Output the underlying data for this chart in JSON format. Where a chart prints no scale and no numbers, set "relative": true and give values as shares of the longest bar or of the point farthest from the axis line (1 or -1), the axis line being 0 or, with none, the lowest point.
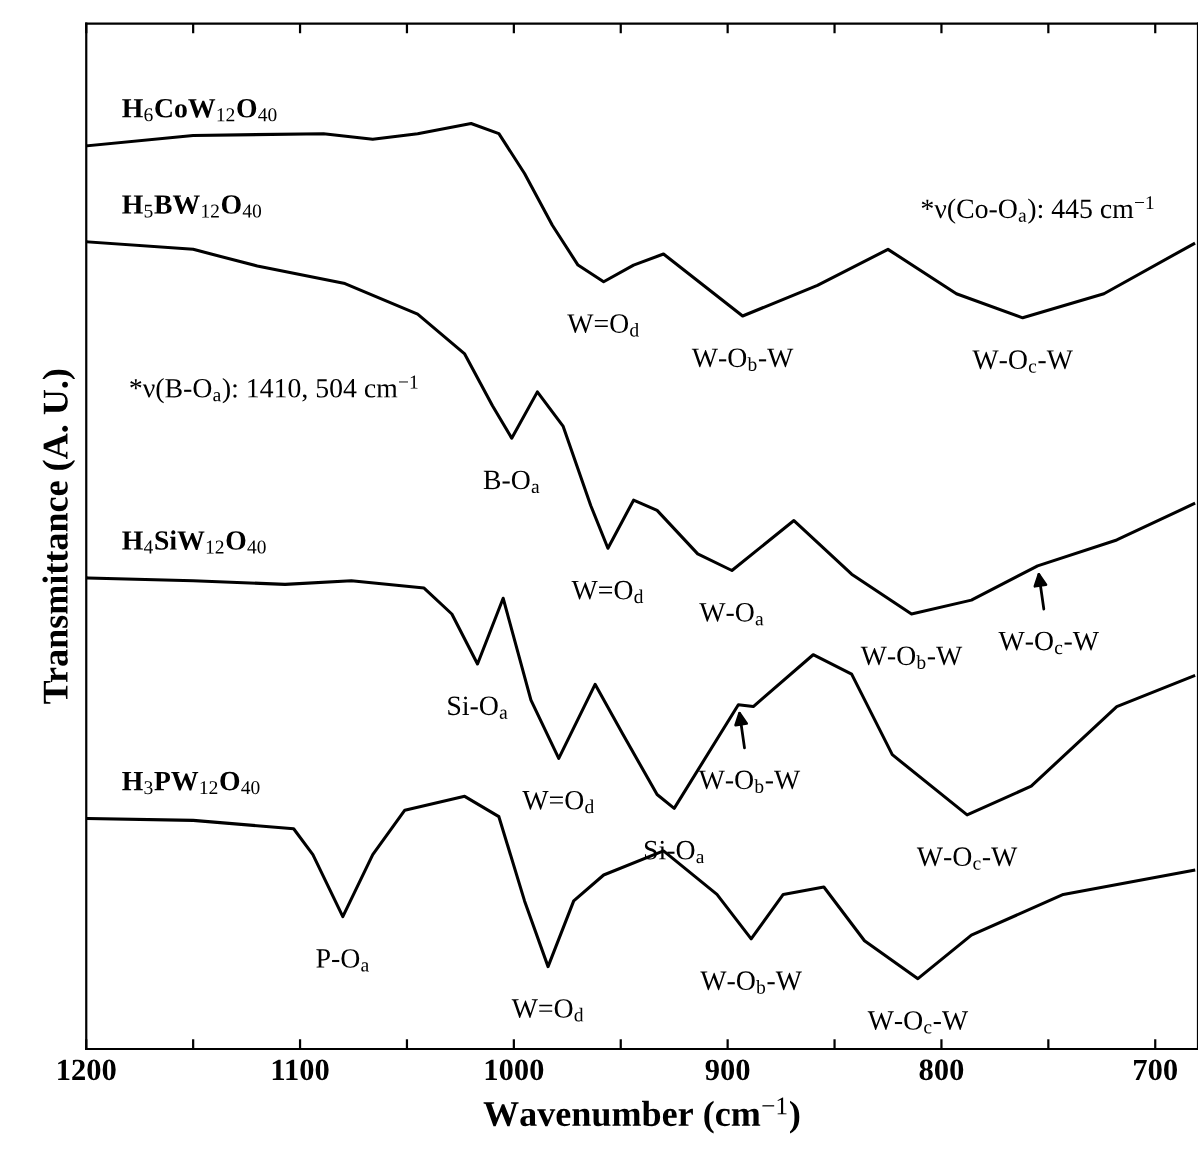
{
  "chart_data": {
    "type": "line",
    "relative": true,
    "xlabel": "Wavenumber (cm$^{−1}$)",
    "ylabel": "Transmittance (A. U.)",
    "xlim": [
      1200,
      680
    ],
    "xticks": [
      1200,
      {
        "value": 1150,
        "label": null
      },
      1100,
      {
        "value": 1050,
        "label": null
      },
      1000,
      {
        "value": 950,
        "label": null
      },
      900,
      {
        "value": 850,
        "label": null
      },
      800,
      {
        "value": 750,
        "label": null
      },
      700
    ],
    "tick_labels": "x",
    "grid": false,
    "legend": false,
    "marker": "none",
    "line_style": "solid",
    "series": [
      {
        "name": "H$_{6}$CoW$_{12}$O$_{40}$",
        "color": "#000000",
        "x": [
          1199,
          1150,
          1089,
          1066,
          1045,
          1020,
          1007,
          995,
          982,
          970,
          958,
          944,
          930,
          893,
          858,
          825,
          793,
          762,
          724,
          682
        ],
        "values": [
          0.976,
          0.987,
          0.989,
          0.983,
          0.989,
          1,
          0.989,
          0.946,
          0.89,
          0.847,
          0.829,
          0.847,
          0.859,
          0.792,
          0.825,
          0.864,
          0.816,
          0.79,
          0.816,
          0.87
        ]
      },
      {
        "name": "H$_{5}$BW$_{12}$O$_{40}$",
        "color": "#000000",
        "x": [
          1199,
          1150,
          1120,
          1079,
          1045,
          1023,
          1010,
          1001,
          989,
          977,
          964,
          956,
          944,
          933,
          914,
          898,
          869,
          842,
          814,
          786,
          755,
          718,
          682
        ],
        "values": [
          0.872,
          0.864,
          0.846,
          0.827,
          0.794,
          0.751,
          0.695,
          0.66,
          0.71,
          0.673,
          0.587,
          0.541,
          0.593,
          0.582,
          0.535,
          0.517,
          0.571,
          0.513,
          0.47,
          0.485,
          0.522,
          0.55,
          0.589
        ]
      },
      {
        "name": "H$_{4}$SiW$_{12}$O$_{40}$",
        "color": "#000000",
        "x": [
          1199,
          1150,
          1107,
          1076,
          1042,
          1029,
          1017,
          1005,
          992,
          979,
          962,
          949,
          933,
          925,
          895,
          888,
          860,
          842,
          823,
          788,
          758,
          718,
          682
        ],
        "values": [
          0.509,
          0.506,
          0.502,
          0.506,
          0.498,
          0.47,
          0.416,
          0.487,
          0.377,
          0.314,
          0.394,
          0.34,
          0.275,
          0.26,
          0.372,
          0.37,
          0.426,
          0.405,
          0.318,
          0.253,
          0.284,
          0.37,
          0.403
        ]
      },
      {
        "name": "H$_{3}$PW$_{12}$O$_{40}$",
        "color": "#000000",
        "x": [
          1199,
          1150,
          1103,
          1094,
          1080,
          1066,
          1051,
          1023,
          1007,
          995,
          984,
          972,
          958,
          930,
          905,
          889,
          874,
          855,
          836,
          811,
          786,
          743,
          682
        ],
        "values": [
          0.249,
          0.247,
          0.238,
          0.21,
          0.143,
          0.21,
          0.258,
          0.273,
          0.251,
          0.16,
          0.089,
          0.16,
          0.188,
          0.214,
          0.167,
          0.119,
          0.167,
          0.175,
          0.117,
          0.076,
          0.123,
          0.167,
          0.193
        ]
      }
    ],
    "annotations": [
      "*ν(Co-O$_{a}$): 445 cm$^{−1}$",
      "*ν(B-O$_{a}$): 1410, 504 cm$^{−1}$",
      {
        "text": "W=O$_{d}$",
        "x": 958,
        "y": 0.829
      },
      {
        "text": "W-O$_{b}$-W",
        "x": 893,
        "y": 0.792
      },
      {
        "text": "W-O$_{c}$-W",
        "x": 762,
        "y": 0.79
      },
      {
        "text": "B-O$_{a}$",
        "x": 1001,
        "y": 0.66
      },
      {
        "text": "W=O$_{d}$",
        "x": 956,
        "y": 0.541
      },
      {
        "text": "W-O$_{a}$",
        "x": 898,
        "y": 0.517
      },
      {
        "text": "W-O$_{b}$-W",
        "x": 814,
        "y": 0.47
      },
      {
        "text": "W-O$_{c}$-W",
        "x": 755,
        "y": 0.522
      },
      {
        "text": "Si-O$_{a}$",
        "x": 1017,
        "y": 0.416
      },
      {
        "text": "W=O$_{d}$",
        "x": 979,
        "y": 0.314
      },
      {
        "text": "Si-O$_{a}$",
        "x": 925,
        "y": 0.26
      },
      {
        "text": "W-O$_{b}$-W",
        "x": 895,
        "y": 0.372
      },
      {
        "text": "W-O$_{c}$-W",
        "x": 788,
        "y": 0.253
      },
      {
        "text": "P-O$_{a}$",
        "x": 1080,
        "y": 0.143
      },
      {
        "text": "W=O$_{d}$",
        "x": 984,
        "y": 0.089
      },
      {
        "text": "W-O$_{b}$-W",
        "x": 889,
        "y": 0.119
      },
      {
        "text": "W-O$_{c}$-W",
        "x": 811,
        "y": 0.076
      }
    ]
  }
}
